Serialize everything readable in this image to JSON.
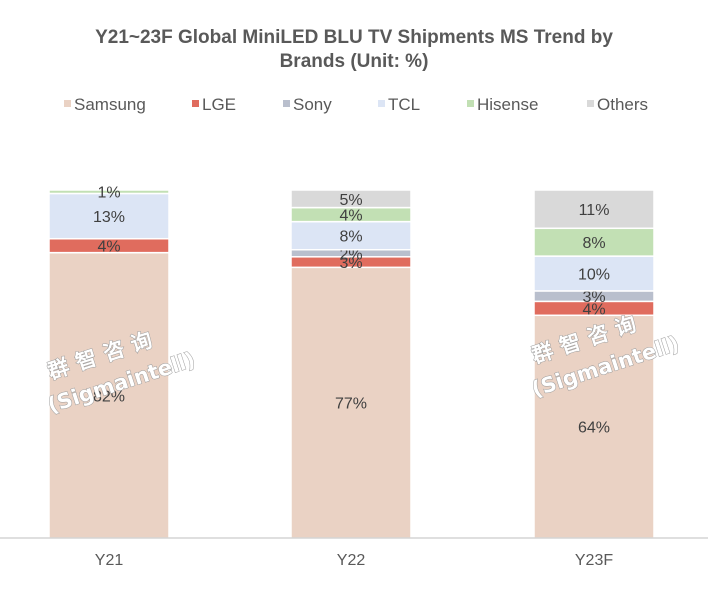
{
  "chart_data": {
    "type": "bar",
    "stacked": true,
    "normalized": true,
    "title_lines": [
      "Y21~23F Global MiniLED BLU TV Shipments MS Trend by",
      "Brands (Unit:  %)"
    ],
    "legend_position": "top",
    "grid": false,
    "categories": [
      "Y21",
      "Y22",
      "Y23F"
    ],
    "series": [
      {
        "name": "Samsung",
        "color": "#ead2c4",
        "values": [
          82,
          77,
          64
        ],
        "labels": [
          "82%",
          "77%",
          "64%"
        ]
      },
      {
        "name": "LGE",
        "color": "#e06c5e",
        "values": [
          4,
          3,
          4
        ],
        "labels": [
          "4%",
          "3%",
          "4%"
        ]
      },
      {
        "name": "Sony",
        "color": "#b9bfcd",
        "values": [
          0,
          2,
          3
        ],
        "labels": [
          "",
          "2%",
          "3%"
        ]
      },
      {
        "name": "TCL",
        "color": "#dce5f5",
        "values": [
          13,
          8,
          10
        ],
        "labels": [
          "13%",
          "8%",
          "10%"
        ]
      },
      {
        "name": "Hisense",
        "color": "#c2e0b4",
        "values": [
          1,
          4,
          8
        ],
        "labels": [
          "1%",
          "4%",
          "8%"
        ]
      },
      {
        "name": "Others",
        "color": "#d9d9d9",
        "values": [
          0,
          5,
          11
        ],
        "labels": [
          "",
          "5%",
          "11%"
        ]
      }
    ]
  },
  "watermark": {
    "line1": "群智咨询",
    "line2": "(Sigmaintell)"
  }
}
